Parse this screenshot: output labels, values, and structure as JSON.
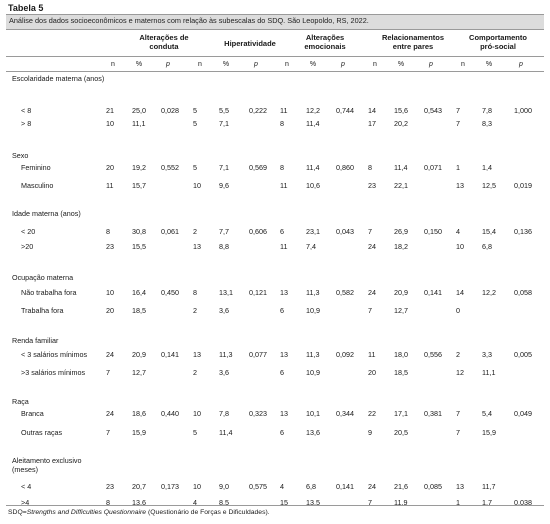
{
  "table_title": "Tabela 5",
  "subtitle": "Análise dos dados socioeconômicos e maternos com relação às subescalas do SDQ. São Leopoldo, RS, 2022.",
  "groups": [
    {
      "label": "Alterações de conduta"
    },
    {
      "label": "Hiperatividade"
    },
    {
      "label": "Alterações emocionais"
    },
    {
      "label": "Relacionamentos entre pares"
    },
    {
      "label": "Comportamento pró-social"
    }
  ],
  "sub_headers": {
    "n": "n",
    "pct": "%",
    "p": "p"
  },
  "sections": [
    {
      "title": "Escolaridade materna (anos)",
      "rows": [
        {
          "label": "< 8",
          "cells": [
            "21",
            "25,0",
            "0,028",
            "5",
            "5,5",
            "0,222",
            "11",
            "12,2",
            "0,744",
            "14",
            "15,6",
            "0,543",
            "7",
            "7,8",
            "1,000"
          ]
        },
        {
          "label": "> 8",
          "cells": [
            "10",
            "11,1",
            "",
            "5",
            "7,1",
            "",
            "8",
            "11,4",
            "",
            "17",
            "20,2",
            "",
            "7",
            "8,3",
            ""
          ]
        }
      ]
    },
    {
      "title": "Sexo",
      "rows": [
        {
          "label": "Feminino",
          "cells": [
            "20",
            "19,2",
            "0,552",
            "5",
            "7,1",
            "0,569",
            "8",
            "11,4",
            "0,860",
            "8",
            "11,4",
            "0,071",
            "1",
            "1,4",
            ""
          ]
        },
        {
          "label": "Masculino",
          "cells": [
            "11",
            "15,7",
            "",
            "10",
            "9,6",
            "",
            "11",
            "10,6",
            "",
            "23",
            "22,1",
            "",
            "13",
            "12,5",
            "0,019"
          ]
        }
      ]
    },
    {
      "title": "Idade materna (anos)",
      "rows": [
        {
          "label": "< 20",
          "cells": [
            "8",
            "30,8",
            "0,061",
            "2",
            "7,7",
            "0,606",
            "6",
            "23,1",
            "0,043",
            "7",
            "26,9",
            "0,150",
            "4",
            "15,4",
            "0,136"
          ]
        },
        {
          "label": ">20",
          "cells": [
            "23",
            "15,5",
            "",
            "13",
            "8,8",
            "",
            "11",
            "7,4",
            "",
            "24",
            "18,2",
            "",
            "10",
            "6,8",
            ""
          ]
        }
      ]
    },
    {
      "title": "Ocupação materna",
      "rows": [
        {
          "label": "Não trabalha fora",
          "cells": [
            "10",
            "16,4",
            "0,450",
            "8",
            "13,1",
            "0,121",
            "13",
            "11,3",
            "0,582",
            "24",
            "20,9",
            "0,141",
            "14",
            "12,2",
            "0,058"
          ]
        },
        {
          "label": "Trabalha fora",
          "cells": [
            "20",
            "18,5",
            "",
            "2",
            "3,6",
            "",
            "6",
            "10,9",
            "",
            "7",
            "12,7",
            "",
            "0",
            "",
            ""
          ]
        }
      ]
    },
    {
      "title": "Renda familiar",
      "rows": [
        {
          "label": "< 3 salários mínimos",
          "cells": [
            "24",
            "20,9",
            "0,141",
            "13",
            "11,3",
            "0,077",
            "13",
            "11,3",
            "0,092",
            "11",
            "18,0",
            "0,556",
            "2",
            "3,3",
            "0,005"
          ]
        },
        {
          "label": ">3 salários mínimos",
          "cells": [
            "7",
            "12,7",
            "",
            "2",
            "3,6",
            "",
            "6",
            "10,9",
            "",
            "20",
            "18,5",
            "",
            "12",
            "11,1",
            ""
          ]
        }
      ]
    },
    {
      "title": "Raça",
      "rows": [
        {
          "label": "Branca",
          "cells": [
            "24",
            "18,6",
            "0,440",
            "10",
            "7,8",
            "0,323",
            "13",
            "10,1",
            "0,344",
            "22",
            "17,1",
            "0,381",
            "7",
            "5,4",
            "0,049"
          ]
        },
        {
          "label": "Outras raças",
          "cells": [
            "7",
            "15,9",
            "",
            "5",
            "11,4",
            "",
            "6",
            "13,6",
            "",
            "9",
            "20,5",
            "",
            "7",
            "15,9",
            ""
          ]
        }
      ]
    },
    {
      "title": "Aleitamento exclusivo (meses)",
      "rows": [
        {
          "label": "< 4",
          "cells": [
            "23",
            "20,7",
            "0,173",
            "10",
            "9,0",
            "0,575",
            "4",
            "6,8",
            "0,141",
            "24",
            "21,6",
            "0,085",
            "13",
            "11,7",
            ""
          ]
        },
        {
          "label": ">4",
          "cells": [
            "8",
            "13,6",
            "",
            "4",
            "8,5",
            "",
            "15",
            "13,5",
            "",
            "7",
            "11,9",
            "",
            "1",
            "1,7",
            "0,038"
          ]
        }
      ]
    }
  ],
  "footer": {
    "abbr": "SDQ=",
    "name": "Strengths and Difficulties Questionnaire",
    "rest": " (Questionário de Forças e Dificuldades)."
  }
}
